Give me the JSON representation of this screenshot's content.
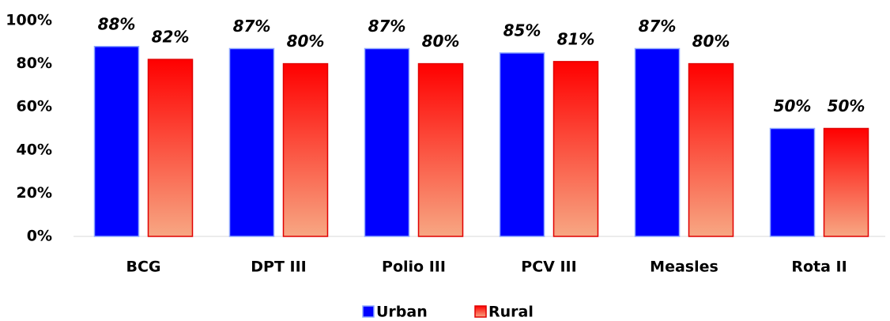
{
  "chart_data": {
    "type": "bar",
    "categories": [
      "BCG",
      "DPT III",
      "Polio III",
      "PCV III",
      "Measles",
      "Rota II"
    ],
    "series": [
      {
        "name": "Urban",
        "color": "#0000ff",
        "values": [
          88,
          87,
          87,
          85,
          87,
          50
        ],
        "value_labels": [
          "88%",
          "87%",
          "87%",
          "85%",
          "87%",
          "50%"
        ]
      },
      {
        "name": "Rural",
        "color": "#ff0000",
        "values": [
          82,
          80,
          80,
          81,
          80,
          50
        ],
        "value_labels": [
          "82%",
          "80%",
          "80%",
          "81%",
          "80%",
          "50%"
        ]
      }
    ],
    "ylim": [
      0,
      100
    ],
    "yticks": [
      {
        "value": 0,
        "label": "0%"
      },
      {
        "value": 20,
        "label": "20%"
      },
      {
        "value": 40,
        "label": "40%"
      },
      {
        "value": 60,
        "label": "60%"
      },
      {
        "value": 80,
        "label": "80%"
      },
      {
        "value": 100,
        "label": "100%"
      }
    ],
    "grid": false,
    "legend": "bottom"
  }
}
